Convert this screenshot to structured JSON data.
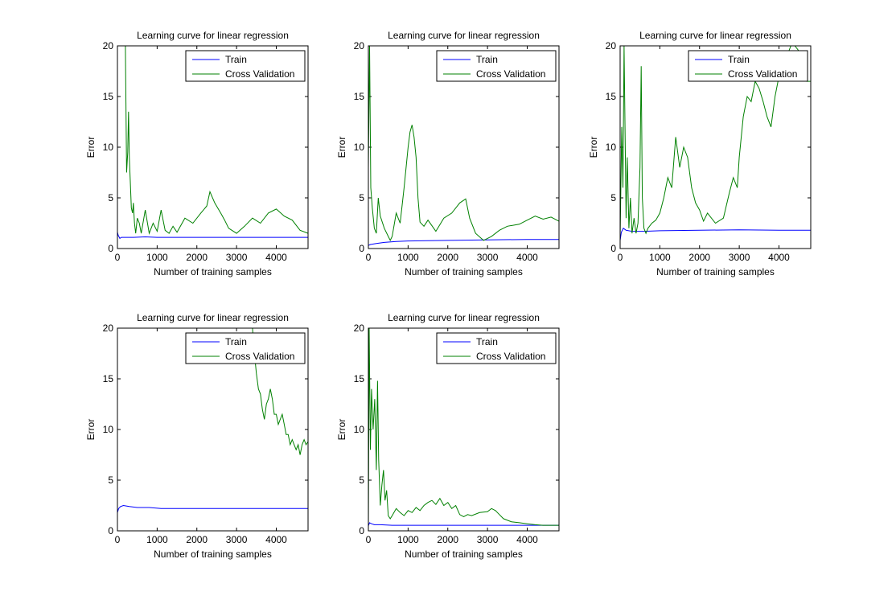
{
  "chart_data": [
    {
      "type": "line",
      "title": "Learning curve for linear regression",
      "xlabel": "Number of training samples",
      "ylabel": "Error",
      "xlim": [
        0,
        4800
      ],
      "ylim": [
        0,
        20
      ],
      "xticks": [
        "0",
        "1000",
        "2000",
        "3000",
        "4000"
      ],
      "yticks": [
        "0",
        "5",
        "10",
        "15",
        "20"
      ],
      "legend_position": "top-right",
      "series": [
        {
          "name": "Train",
          "color": "#0000ff",
          "x": [
            0,
            20,
            60,
            100,
            200,
            400,
            700,
            1000,
            2000,
            3000,
            4000,
            4800
          ],
          "y": [
            1.6,
            1.3,
            1.0,
            1.1,
            1.1,
            1.1,
            1.15,
            1.1,
            1.1,
            1.1,
            1.1,
            1.1
          ]
        },
        {
          "name": "Cross Validation",
          "color": "#008000",
          "x": [
            200,
            230,
            260,
            280,
            300,
            330,
            350,
            380,
            400,
            430,
            460,
            500,
            550,
            600,
            700,
            800,
            900,
            1000,
            1100,
            1200,
            1300,
            1400,
            1500,
            1700,
            1900,
            2100,
            2250,
            2330,
            2450,
            2600,
            2700,
            2800,
            3000,
            3200,
            3400,
            3600,
            3800,
            4000,
            4200,
            4400,
            4600,
            4800
          ],
          "y": [
            20,
            7.5,
            9.5,
            13.5,
            9,
            6,
            4,
            3.5,
            4.5,
            2.5,
            1.5,
            3,
            2.5,
            1.5,
            3.8,
            1.5,
            2.5,
            1.7,
            3.8,
            1.8,
            1.5,
            2.2,
            1.6,
            3,
            2.5,
            3.5,
            4.2,
            5.6,
            4.5,
            3.5,
            2.8,
            2,
            1.5,
            2.2,
            3,
            2.5,
            3.5,
            3.9,
            3.2,
            2.8,
            1.8,
            1.5
          ]
        }
      ]
    },
    {
      "type": "line",
      "title": "Learning curve for linear regression",
      "xlabel": "Number of training samples",
      "ylabel": "Error",
      "xlim": [
        0,
        4800
      ],
      "ylim": [
        0,
        20
      ],
      "xticks": [
        "0",
        "1000",
        "2000",
        "3000",
        "4000"
      ],
      "yticks": [
        "0",
        "5",
        "10",
        "15",
        "20"
      ],
      "legend_position": "top-right",
      "series": [
        {
          "name": "Train",
          "color": "#0000ff",
          "x": [
            0,
            50,
            200,
            400,
            700,
            1000,
            2000,
            3000,
            4000,
            4800
          ],
          "y": [
            0.3,
            0.4,
            0.5,
            0.6,
            0.7,
            0.75,
            0.8,
            0.85,
            0.9,
            0.9
          ]
        },
        {
          "name": "Cross Validation",
          "color": "#008000",
          "x": [
            0,
            30,
            60,
            100,
            150,
            200,
            250,
            300,
            400,
            500,
            550,
            600,
            700,
            800,
            900,
            1000,
            1050,
            1100,
            1150,
            1200,
            1250,
            1300,
            1400,
            1500,
            1700,
            1900,
            2100,
            2300,
            2450,
            2550,
            2700,
            2900,
            3100,
            3300,
            3500,
            3800,
            4000,
            4200,
            4400,
            4600,
            4800
          ],
          "y": [
            8,
            20,
            6,
            4,
            2,
            1.5,
            5,
            3.2,
            2,
            1.2,
            0.8,
            1.2,
            3.5,
            2.5,
            6,
            10,
            11.5,
            12.2,
            11,
            9,
            5,
            2.6,
            2.2,
            2.8,
            1.7,
            3,
            3.5,
            4.5,
            4.9,
            3,
            1.5,
            0.8,
            1.2,
            1.8,
            2.2,
            2.4,
            2.8,
            3.2,
            2.9,
            3.1,
            2.7
          ]
        }
      ]
    },
    {
      "type": "line",
      "title": "Learning curve for linear regression",
      "xlabel": "Number of training samples",
      "ylabel": "Error",
      "xlim": [
        0,
        4800
      ],
      "ylim": [
        0,
        20
      ],
      "xticks": [
        "0",
        "1000",
        "2000",
        "3000",
        "4000"
      ],
      "yticks": [
        "0",
        "5",
        "10",
        "15",
        "20"
      ],
      "legend_position": "top-right",
      "series": [
        {
          "name": "Train",
          "color": "#0000ff",
          "x": [
            0,
            30,
            80,
            150,
            300,
            600,
            1000,
            2000,
            3000,
            4000,
            4800
          ],
          "y": [
            0.8,
            1.6,
            2.0,
            1.8,
            1.7,
            1.7,
            1.75,
            1.8,
            1.85,
            1.8,
            1.8
          ]
        },
        {
          "name": "Cross Validation",
          "color": "#008000",
          "x": [
            0,
            40,
            70,
            100,
            150,
            180,
            220,
            260,
            300,
            350,
            400,
            450,
            500,
            530,
            560,
            600,
            650,
            700,
            800,
            900,
            1000,
            1100,
            1200,
            1300,
            1400,
            1500,
            1600,
            1700,
            1800,
            1900,
            2000,
            2100,
            2200,
            2400,
            2600,
            2750,
            2850,
            2950,
            3000,
            3100,
            3200,
            3300,
            3400,
            3500,
            3600,
            3700,
            3800,
            3900,
            4000,
            4100,
            4200,
            4300,
            4400,
            4500,
            4600,
            4700,
            4800
          ],
          "y": [
            1,
            12,
            6,
            20,
            3,
            9,
            2,
            5,
            1.5,
            3,
            1.5,
            2.5,
            8,
            18,
            5,
            2,
            1.5,
            2,
            2.5,
            2.8,
            3.5,
            5,
            7,
            6,
            11,
            8,
            10,
            9,
            6,
            4.5,
            3.8,
            2.7,
            3.5,
            2.5,
            3,
            5.5,
            7,
            6,
            9,
            13,
            15,
            14.5,
            16.5,
            15.8,
            14.5,
            13,
            12,
            15,
            17,
            18,
            19,
            20,
            20,
            19.5,
            18,
            16.5,
            16.5
          ]
        }
      ]
    },
    {
      "type": "line",
      "title": "Learning curve for linear regression",
      "xlabel": "Number of training samples",
      "ylabel": "Error",
      "xlim": [
        0,
        4800
      ],
      "ylim": [
        0,
        20
      ],
      "xticks": [
        "0",
        "1000",
        "2000",
        "3000",
        "4000"
      ],
      "yticks": [
        "0",
        "5",
        "10",
        "15",
        "20"
      ],
      "legend_position": "top-right",
      "series": [
        {
          "name": "Train",
          "color": "#0000ff",
          "x": [
            0,
            30,
            80,
            150,
            300,
            500,
            800,
            1100,
            2000,
            3000,
            4000,
            4800
          ],
          "y": [
            1.8,
            2.2,
            2.4,
            2.5,
            2.4,
            2.3,
            2.3,
            2.2,
            2.2,
            2.2,
            2.2,
            2.2
          ]
        },
        {
          "name": "Cross Validation",
          "color": "#008000",
          "x": [
            3200,
            3250,
            3300,
            3350,
            3400,
            3450,
            3500,
            3550,
            3600,
            3650,
            3700,
            3750,
            3800,
            3850,
            3900,
            3950,
            4000,
            4050,
            4100,
            4150,
            4200,
            4250,
            4300,
            4350,
            4400,
            4450,
            4500,
            4550,
            4600,
            4650,
            4700,
            4750,
            4800
          ],
          "y": [
            20,
            20,
            20,
            20,
            20,
            17.5,
            15.5,
            14,
            13.5,
            12,
            11,
            12.5,
            13,
            14,
            13,
            11.5,
            11.5,
            10.5,
            11,
            11.5,
            10.5,
            9.5,
            9.5,
            8.5,
            9,
            8.5,
            8,
            8.5,
            7.5,
            8.5,
            9,
            8.5,
            8.8
          ]
        }
      ]
    },
    {
      "type": "line",
      "title": "Learning curve for linear regression",
      "xlabel": "Number of training samples",
      "ylabel": "Error",
      "xlim": [
        0,
        4800
      ],
      "ylim": [
        0,
        20
      ],
      "xticks": [
        "0",
        "1000",
        "2000",
        "3000",
        "4000"
      ],
      "yticks": [
        "0",
        "5",
        "10",
        "15",
        "20"
      ],
      "legend_position": "top-right",
      "series": [
        {
          "name": "Train",
          "color": "#0000ff",
          "x": [
            0,
            30,
            80,
            150,
            300,
            600,
            1000,
            2000,
            3000,
            4000,
            4800
          ],
          "y": [
            0.5,
            0.8,
            0.7,
            0.6,
            0.6,
            0.55,
            0.55,
            0.55,
            0.55,
            0.55,
            0.55
          ]
        },
        {
          "name": "Cross Validation",
          "color": "#008000",
          "x": [
            0,
            20,
            50,
            80,
            120,
            160,
            200,
            230,
            260,
            300,
            340,
            380,
            420,
            460,
            500,
            550,
            600,
            700,
            800,
            900,
            1000,
            1100,
            1200,
            1300,
            1400,
            1500,
            1600,
            1700,
            1800,
            1900,
            2000,
            2100,
            2200,
            2300,
            2400,
            2500,
            2600,
            2800,
            3000,
            3100,
            3200,
            3300,
            3400,
            3600,
            3800,
            4000,
            4200,
            4400,
            4600,
            4800
          ],
          "y": [
            0,
            20,
            8,
            14,
            10,
            13,
            6,
            14.8,
            7,
            2.5,
            4.5,
            6,
            3,
            4,
            1.5,
            1.2,
            1.5,
            2.2,
            1.8,
            1.5,
            2,
            1.8,
            2.3,
            2.0,
            2.5,
            2.8,
            3,
            2.6,
            3.2,
            2.5,
            2.8,
            2.2,
            2.5,
            1.6,
            1.4,
            1.6,
            1.5,
            1.8,
            1.9,
            2.2,
            2.0,
            1.6,
            1.2,
            0.9,
            0.8,
            0.7,
            0.6,
            0.55,
            0.55,
            0.55
          ]
        }
      ]
    }
  ]
}
